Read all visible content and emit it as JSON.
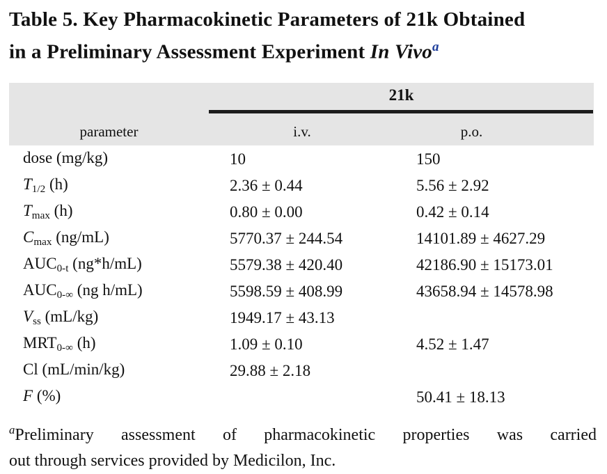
{
  "title": {
    "line1": "Table 5. Key Pharmacokinetic Parameters of 21k Obtained",
    "line2": "in a Preliminary Assessment Experiment",
    "line2_italic": "In Vivo",
    "superscript": "a"
  },
  "header": {
    "compound": "21k",
    "parameter_label": "parameter",
    "iv_label": "i.v.",
    "po_label": "p.o."
  },
  "rows": [
    {
      "name": "dose",
      "sub": "",
      "unit": "(mg/kg)",
      "iv": "10",
      "po": "150"
    },
    {
      "name": "T",
      "sub": "1/2",
      "unit": "(h)",
      "iv": "2.36 ± 0.44",
      "po": "5.56 ± 2.92"
    },
    {
      "name": "T",
      "sub": "max",
      "unit": "(h)",
      "iv": "0.80 ± 0.00",
      "po": "0.42 ± 0.14"
    },
    {
      "name": "C",
      "sub": "max",
      "unit": "(ng/mL)",
      "iv": "5770.37 ± 244.54",
      "po": "14101.89 ± 4627.29"
    },
    {
      "name": "AUC",
      "sub": "0-t",
      "unit": "(ng*h/mL)",
      "iv": "5579.38 ± 420.40",
      "po": "42186.90 ± 15173.01"
    },
    {
      "name": "AUC",
      "sub": "0-∞",
      "unit": "(ng h/mL)",
      "iv": "5598.59 ± 408.99",
      "po": "43658.94 ± 14578.98"
    },
    {
      "name": "V",
      "sub": "ss",
      "unit": "(mL/kg)",
      "iv": "1949.17 ± 43.13",
      "po": ""
    },
    {
      "name": "MRT",
      "sub": "0-∞",
      "unit": "(h)",
      "iv": "1.09 ± 0.10",
      "po": "4.52 ± 1.47"
    },
    {
      "name": "Cl",
      "sub": "",
      "unit": "(mL/min/kg)",
      "iv": "29.88 ± 2.18",
      "po": ""
    },
    {
      "name": "F",
      "sub": "",
      "unit": "(%)",
      "iv": "",
      "po": "50.41 ± 18.13"
    }
  ],
  "footnote": {
    "marker": "a",
    "line1": "Preliminary assessment of pharmacokinetic properties was carried",
    "line2": "out through services provided by Medicilon, Inc."
  },
  "colors": {
    "header_band_bg": "#e5e5e5",
    "header_rule": "#1c1c1c",
    "title_superscript_blue": "#1e3e9c",
    "text": "#111111"
  }
}
